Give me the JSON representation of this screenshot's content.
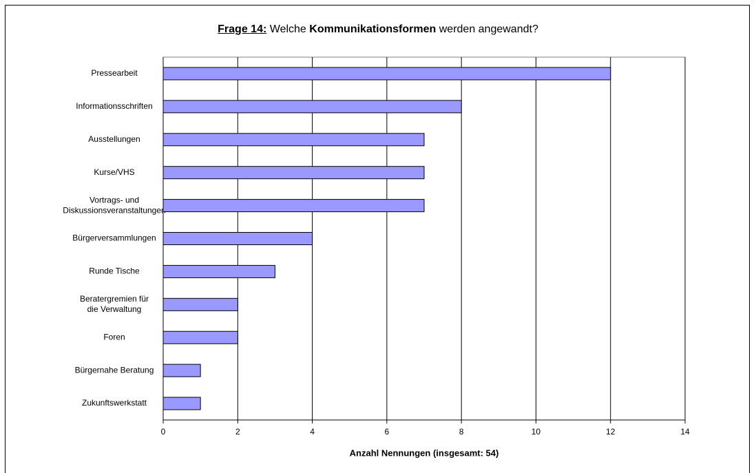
{
  "chart_data": {
    "type": "barh",
    "title_parts": [
      "Frage 14:",
      "Welche",
      "Kommunikationsformen",
      "werden angewandt?"
    ],
    "xlabel": "Anzahl Nennungen (insgesamt: 54)",
    "categories": [
      "Pressearbeit",
      "Informationsschriften",
      "Ausstellungen",
      "Kurse/VHS",
      [
        "Vortrags- und",
        "Diskussionsveranstaltungen"
      ],
      "Bürgerversammlungen",
      "Runde Tische",
      [
        "Beratergremien für",
        "die Verwaltung"
      ],
      "Foren",
      "Bürgernahe Beratung",
      "Zukunftswerkstatt"
    ],
    "values": [
      12,
      8,
      7,
      7,
      7,
      4,
      3,
      2,
      2,
      1,
      1
    ],
    "color": "#9999ff",
    "xlim": [
      0,
      14
    ],
    "xticks": [
      0,
      2,
      4,
      6,
      8,
      10,
      12,
      14
    ],
    "grid": true
  }
}
